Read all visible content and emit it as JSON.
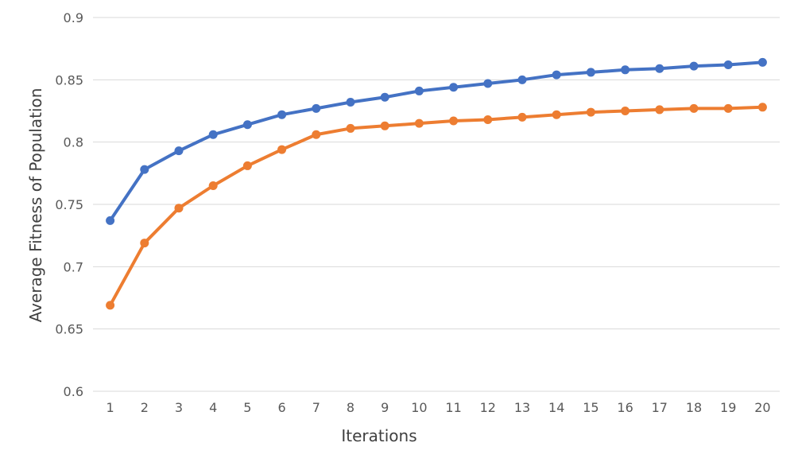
{
  "chart_data": {
    "type": "line",
    "title": "",
    "xlabel": "Iterations",
    "ylabel": "Average Fitness of Population",
    "categories": [
      "1",
      "2",
      "3",
      "4",
      "5",
      "6",
      "7",
      "8",
      "9",
      "10",
      "11",
      "12",
      "13",
      "14",
      "15",
      "16",
      "17",
      "18",
      "19",
      "20"
    ],
    "ylim": [
      0.6,
      0.9
    ],
    "yticks": [
      "0.6",
      "0.65",
      "0.7",
      "0.75",
      "0.8",
      "0.85",
      "0.9"
    ],
    "grid": true,
    "legend": "none",
    "series": [
      {
        "color": "#4472c4",
        "values": [
          0.737,
          0.778,
          0.793,
          0.806,
          0.814,
          0.822,
          0.827,
          0.832,
          0.836,
          0.841,
          0.844,
          0.847,
          0.85,
          0.854,
          0.856,
          0.858,
          0.859,
          0.861,
          0.862,
          0.864
        ]
      },
      {
        "color": "#ed7d31",
        "values": [
          0.669,
          0.719,
          0.747,
          0.765,
          0.781,
          0.794,
          0.806,
          0.811,
          0.813,
          0.815,
          0.817,
          0.818,
          0.82,
          0.822,
          0.824,
          0.825,
          0.826,
          0.827,
          0.827,
          0.828
        ]
      }
    ]
  }
}
